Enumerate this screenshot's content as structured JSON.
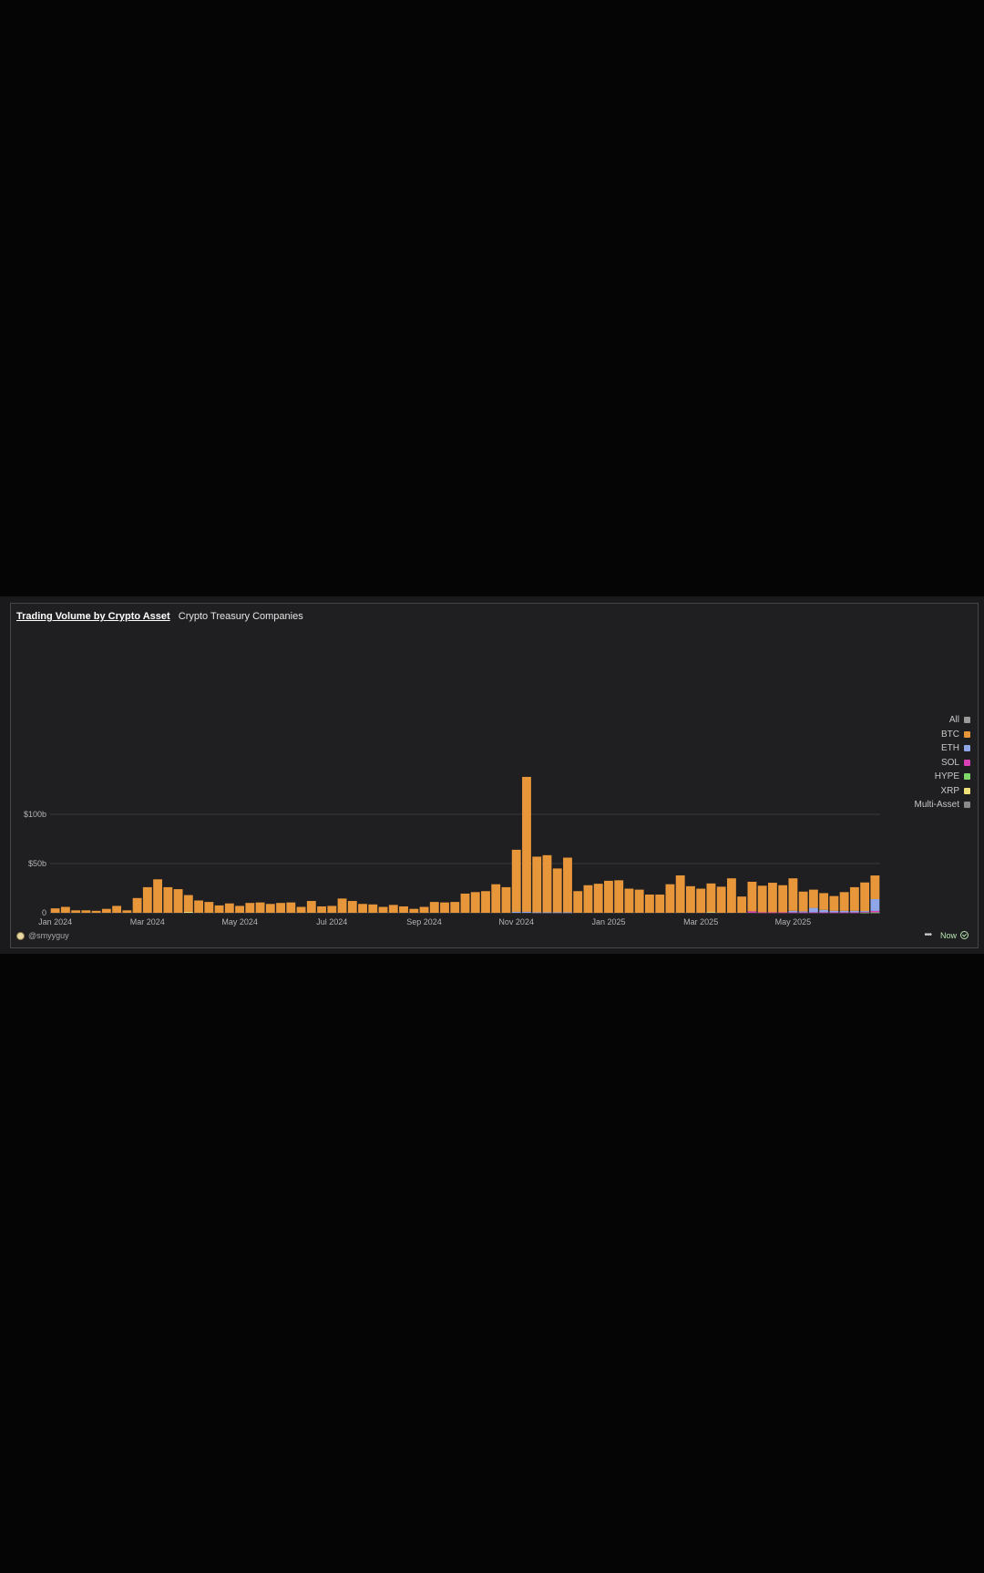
{
  "header": {
    "title": "Trading Volume by Crypto Asset",
    "subtitle": "Crypto Treasury Companies"
  },
  "legend": [
    {
      "label": "All",
      "color": "#9a9a9a"
    },
    {
      "label": "BTC",
      "color": "#e8963a"
    },
    {
      "label": "ETH",
      "color": "#8fa6e8"
    },
    {
      "label": "SOL",
      "color": "#d63fb5"
    },
    {
      "label": "HYPE",
      "color": "#7fd86a"
    },
    {
      "label": "XRP",
      "color": "#efe07a"
    },
    {
      "label": "Multi-Asset",
      "color": "#8a8a8a"
    }
  ],
  "footer": {
    "author": "@smyyguy",
    "status": "Now"
  },
  "colors": {
    "btc": "#e8963a",
    "eth": "#8fa6e8",
    "sol": "#d63fb5",
    "hype": "#7fd86a",
    "xrp": "#efe07a",
    "multi": "#8a8a8a",
    "grid": "#3a3a3d",
    "axis_text": "#b4b4b4"
  },
  "chart_data": {
    "type": "bar",
    "stacked": true,
    "interval": "weekly",
    "x_tick_labels": [
      "Jan 2024",
      "Mar 2024",
      "May 2024",
      "Jul 2024",
      "Sep 2024",
      "Nov 2024",
      "Jan 2025",
      "Mar 2025",
      "May 2025"
    ],
    "y_tick_labels": [
      "0",
      "$50b",
      "$100b"
    ],
    "y_ticks": [
      0,
      50,
      100
    ],
    "ylim": [
      0,
      140
    ],
    "unit": "billions USD",
    "grid": true,
    "legend_position": "right",
    "series": [
      {
        "name": "BTC",
        "values": [
          4.5,
          6,
          2.5,
          2.5,
          2,
          4,
          7,
          2.5,
          15,
          26,
          34,
          26,
          24,
          17,
          12.5,
          11,
          7.5,
          9.5,
          7,
          10,
          10.5,
          9,
          10,
          10.5,
          6,
          12,
          6.5,
          7,
          14.5,
          12,
          9,
          8.5,
          6,
          8,
          6.5,
          4,
          6,
          11,
          10.5,
          11,
          19.5,
          21,
          22,
          29,
          26,
          63,
          137,
          56.5,
          58,
          44.5,
          55.5,
          22,
          28,
          29.5,
          32.5,
          33,
          24.5,
          23.5,
          18.5,
          18.5,
          29,
          38,
          27,
          24.5,
          29,
          26.5,
          35,
          16.5,
          30,
          27,
          30,
          27.5,
          33,
          20,
          18.5,
          17,
          15,
          19,
          24,
          29,
          24
        ]
      },
      {
        "name": "ETH",
        "values": [
          0,
          0,
          0,
          0,
          0,
          0,
          0,
          0,
          0,
          0,
          0,
          0,
          0,
          0,
          0,
          0,
          0,
          0,
          0,
          0,
          0,
          0,
          0,
          0,
          0,
          0,
          0,
          0,
          0,
          0,
          0,
          0,
          0,
          0,
          0,
          0,
          0,
          0,
          0,
          0,
          0,
          0,
          0,
          0,
          0,
          1,
          1,
          0.5,
          0.5,
          0.5,
          0.5,
          0,
          0,
          0,
          0,
          0,
          0,
          0,
          0,
          0,
          0,
          0,
          0,
          0,
          0,
          0,
          0,
          0,
          0,
          0,
          0,
          0,
          1.5,
          1,
          4.5,
          2.5,
          1.5,
          1.5,
          1.5,
          1,
          12,
          14
        ]
      },
      {
        "name": "SOL",
        "values": [
          0,
          0,
          0,
          0,
          0,
          0,
          0,
          0,
          0,
          0,
          0,
          0,
          0,
          0,
          0,
          0,
          0,
          0,
          0,
          0,
          0,
          0,
          0,
          0,
          0,
          0,
          0,
          0,
          0,
          0,
          0,
          0,
          0,
          0,
          0,
          0,
          0,
          0,
          0,
          0,
          0,
          0,
          0,
          0,
          0,
          0,
          0,
          0,
          0,
          0,
          0,
          0,
          0,
          0,
          0,
          0,
          0,
          0,
          0,
          0,
          0,
          0,
          0,
          0,
          0,
          0,
          0,
          0,
          1.5,
          0.5,
          0.5,
          0.5,
          0.5,
          0.5,
          0.5,
          0.5,
          0.5,
          0.5,
          0.5,
          0.5,
          1.5
        ]
      },
      {
        "name": "HYPE",
        "values": [
          0,
          0,
          0,
          0,
          0,
          0,
          0,
          0,
          0,
          0,
          0,
          0,
          0,
          0,
          0,
          0,
          0,
          0,
          0,
          0,
          0,
          0,
          0,
          0,
          0,
          0,
          0,
          0,
          0,
          0,
          0,
          0,
          0,
          0,
          0,
          0,
          0,
          0,
          0,
          0,
          0,
          0,
          0,
          0,
          0,
          0,
          0,
          0,
          0,
          0,
          0,
          0,
          0,
          0,
          0,
          0,
          0,
          0,
          0,
          0,
          0,
          0,
          0,
          0,
          0,
          0,
          0,
          0,
          0,
          0,
          0,
          0,
          0,
          0,
          0,
          0,
          0,
          0,
          0,
          0.3,
          0.4
        ]
      },
      {
        "name": "XRP",
        "values": [
          0,
          0,
          0,
          0,
          0,
          0,
          0,
          0,
          0,
          0,
          0,
          0,
          0,
          1,
          0,
          0,
          0,
          0,
          0,
          0,
          0,
          0,
          0,
          0,
          0,
          0,
          0,
          0,
          0,
          0,
          0,
          0,
          0,
          0,
          0,
          0,
          0,
          0,
          0,
          0,
          0,
          0,
          0,
          0,
          0,
          0,
          0,
          0,
          0,
          0,
          0,
          0,
          0,
          0,
          0,
          0,
          0,
          0,
          0,
          0,
          0,
          0,
          0,
          0,
          0.8,
          0,
          0,
          0,
          0,
          0,
          0,
          0,
          0,
          0,
          0,
          0,
          0,
          0,
          0,
          0,
          0
        ]
      }
    ]
  }
}
